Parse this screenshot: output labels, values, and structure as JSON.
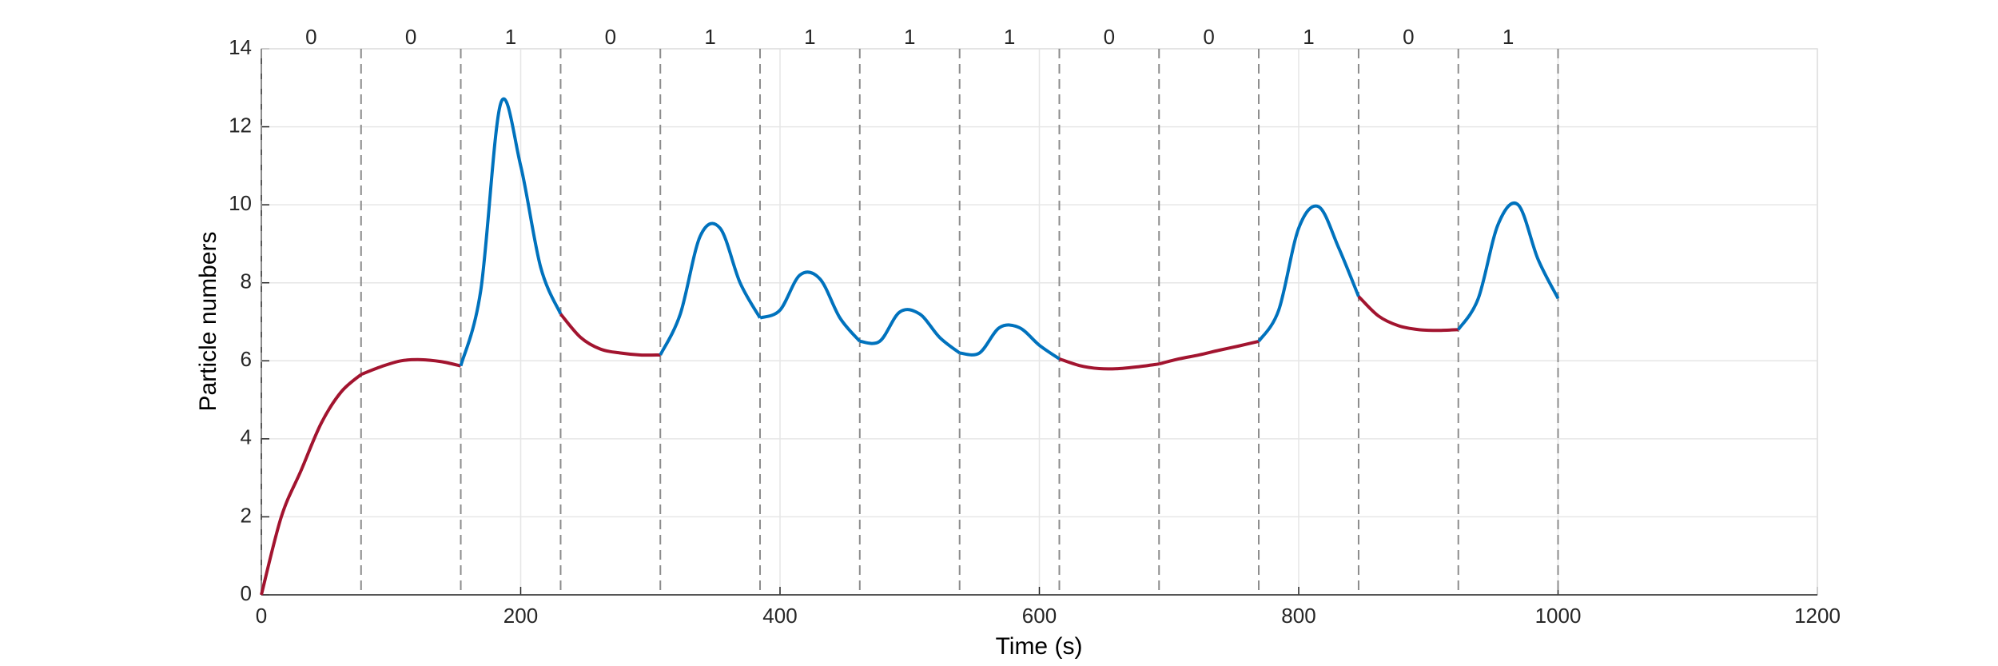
{
  "chart_data": {
    "type": "line",
    "xlabel": "Time (s)",
    "ylabel": "Particle numbers",
    "x": [
      0,
      15.4,
      30.8,
      46.2,
      61.5,
      76.9,
      92.3,
      107.7,
      123.1,
      138.5,
      153.8,
      169.2,
      184.6,
      200,
      215.4,
      230.8,
      246.2,
      261.5,
      276.9,
      292.3,
      307.7,
      323.1,
      338.5,
      353.8,
      369.2,
      384.6,
      400,
      415.4,
      430.8,
      446.2,
      461.5,
      476.9,
      492.3,
      507.7,
      523.1,
      538.5,
      553.8,
      569.2,
      584.6,
      600,
      615.4,
      630.8,
      646.2,
      661.5,
      676.9,
      692.3,
      707.7,
      723.1,
      738.5,
      753.8,
      769.2,
      784.6,
      800,
      815.4,
      830.8,
      846.2,
      861.5,
      876.9,
      892.3,
      907.7,
      923.1,
      938.5,
      953.8,
      969.2,
      984.6,
      1000
    ],
    "values": [
      0,
      2.0,
      3.2,
      4.4,
      5.2,
      5.65,
      5.85,
      6.0,
      6.03,
      5.98,
      5.87,
      7.8,
      12.6,
      11.0,
      8.4,
      7.2,
      6.6,
      6.3,
      6.2,
      6.15,
      6.15,
      7.2,
      9.2,
      9.4,
      8.0,
      7.1,
      7.3,
      8.2,
      8.1,
      7.1,
      6.5,
      6.5,
      7.25,
      7.2,
      6.6,
      6.2,
      6.2,
      6.85,
      6.85,
      6.4,
      6.05,
      5.88,
      5.8,
      5.8,
      5.85,
      5.92,
      6.05,
      6.15,
      6.27,
      6.38,
      6.5,
      7.3,
      9.4,
      9.95,
      8.9,
      7.65,
      7.15,
      6.9,
      6.8,
      6.78,
      6.8,
      7.6,
      9.5,
      10.0,
      8.6,
      7.6
    ],
    "boundaries": [
      0,
      76.9,
      153.8,
      230.8,
      307.7,
      384.6,
      461.5,
      538.5,
      615.4,
      692.3,
      769.2,
      846.2,
      923.1,
      1000
    ],
    "states": [
      "0",
      "0",
      "1",
      "0",
      "1",
      "1",
      "1",
      "1",
      "0",
      "0",
      "1",
      "0",
      "1"
    ],
    "state_colors": {
      "0": "#a2142f",
      "1": "#0072bd"
    },
    "xlim": [
      0,
      1200
    ],
    "xticks": [
      0,
      200,
      400,
      600,
      800,
      1000,
      1200
    ],
    "ylim": [
      0,
      14
    ],
    "yticks": [
      0,
      2,
      4,
      6,
      8,
      10,
      12,
      14
    ],
    "grid": true
  }
}
